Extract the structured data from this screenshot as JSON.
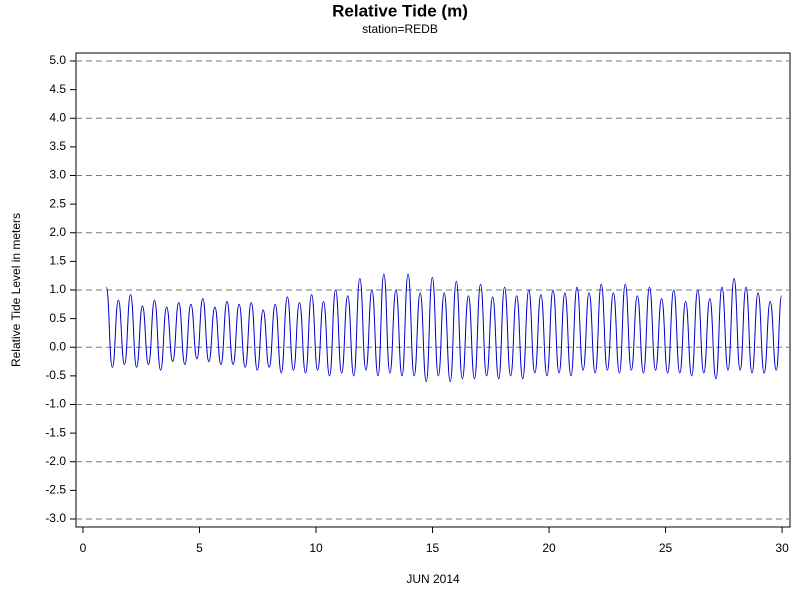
{
  "chart_data": {
    "type": "line",
    "title": "Relative Tide (m)",
    "subtitle": "station=REDB",
    "x_label": "JUN 2014",
    "y_label": "Relative Tide Level in meters",
    "xlim": [
      -0.3,
      30.34
    ],
    "ylim": [
      -3.14,
      5.14
    ],
    "xticks": [
      0,
      5,
      10,
      15,
      20,
      25,
      30
    ],
    "yticks": [
      {
        "value": 5,
        "label": "5.0"
      },
      4.5,
      {
        "value": 4,
        "label": "4.0"
      },
      3.5,
      {
        "value": 3,
        "label": "3.0"
      },
      2.5,
      {
        "value": 2,
        "label": "2.0"
      },
      1.5,
      {
        "value": 1,
        "label": "1.0"
      },
      0.5,
      {
        "value": 0,
        "label": "0.0"
      },
      -0.5,
      {
        "value": -1,
        "label": "-1.0"
      },
      -1.5,
      {
        "value": -2,
        "label": "-2.0"
      },
      -2.5,
      {
        "value": -3,
        "label": "-3.0"
      }
    ],
    "grid": true,
    "series": [
      {
        "color": "#0000cc",
        "x": [
          1.0,
          1.26,
          1.52,
          1.78,
          2.04,
          2.3,
          2.55,
          2.81,
          3.07,
          3.33,
          3.59,
          3.85,
          4.11,
          4.37,
          4.63,
          4.89,
          5.14,
          5.4,
          5.66,
          5.92,
          6.18,
          6.44,
          6.7,
          6.96,
          7.22,
          7.48,
          7.73,
          7.99,
          8.25,
          8.51,
          8.77,
          9.03,
          9.29,
          9.55,
          9.81,
          10.07,
          10.32,
          10.58,
          10.84,
          11.1,
          11.36,
          11.62,
          11.88,
          12.14,
          12.4,
          12.66,
          12.91,
          13.17,
          13.43,
          13.69,
          13.95,
          14.21,
          14.47,
          14.73,
          14.99,
          15.25,
          15.5,
          15.76,
          16.02,
          16.28,
          16.54,
          16.8,
          17.06,
          17.32,
          17.58,
          17.84,
          18.09,
          18.35,
          18.61,
          18.87,
          19.13,
          19.39,
          19.65,
          19.91,
          20.17,
          20.43,
          20.68,
          20.94,
          21.2,
          21.46,
          21.72,
          21.98,
          22.24,
          22.5,
          22.76,
          23.02,
          23.27,
          23.53,
          23.79,
          24.05,
          24.31,
          24.57,
          24.83,
          25.09,
          25.35,
          25.61,
          25.86,
          26.12,
          26.38,
          26.64,
          26.9,
          27.16,
          27.42,
          27.68,
          27.94,
          28.2,
          28.45,
          28.71,
          28.97,
          29.23,
          29.49,
          29.75,
          29.98
        ],
        "values": [
          1.05,
          -0.35,
          0.82,
          -0.3,
          0.92,
          -0.35,
          0.72,
          -0.3,
          0.82,
          -0.4,
          0.7,
          -0.25,
          0.78,
          -0.3,
          0.75,
          -0.2,
          0.85,
          -0.25,
          0.7,
          -0.3,
          0.8,
          -0.3,
          0.75,
          -0.35,
          0.78,
          -0.4,
          0.65,
          -0.35,
          0.75,
          -0.45,
          0.88,
          -0.4,
          0.78,
          -0.45,
          0.92,
          -0.4,
          0.8,
          -0.5,
          1.0,
          -0.45,
          0.9,
          -0.5,
          1.2,
          -0.4,
          1.0,
          -0.5,
          1.28,
          -0.45,
          1.0,
          -0.5,
          1.28,
          -0.5,
          0.95,
          -0.6,
          1.22,
          -0.5,
          0.95,
          -0.6,
          1.15,
          -0.55,
          0.9,
          -0.55,
          1.1,
          -0.5,
          0.88,
          -0.55,
          1.05,
          -0.5,
          0.9,
          -0.55,
          1.0,
          -0.45,
          0.92,
          -0.5,
          1.0,
          -0.45,
          0.95,
          -0.5,
          1.05,
          -0.4,
          0.95,
          -0.45,
          1.1,
          -0.4,
          0.95,
          -0.45,
          1.1,
          -0.4,
          0.9,
          -0.45,
          1.05,
          -0.4,
          0.85,
          -0.45,
          1.0,
          -0.45,
          0.8,
          -0.5,
          1.0,
          -0.45,
          0.85,
          -0.55,
          1.05,
          -0.4,
          1.2,
          -0.4,
          1.05,
          -0.45,
          0.95,
          -0.45,
          0.8,
          -0.4,
          0.9
        ]
      }
    ]
  }
}
